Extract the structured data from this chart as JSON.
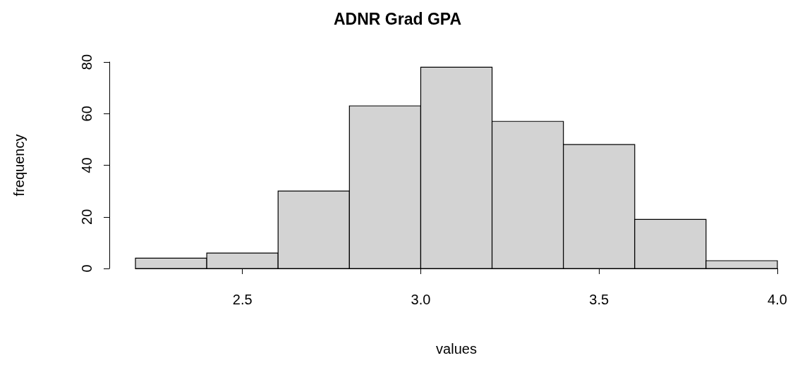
{
  "chart_data": {
    "type": "histogram",
    "title": "ADNR Grad GPA",
    "xlabel": "values",
    "ylabel": "frequency",
    "bins": [
      2.2,
      2.4,
      2.6,
      2.8,
      3.0,
      3.2,
      3.4,
      3.6,
      3.8,
      4.0
    ],
    "values": [
      4,
      6,
      30,
      63,
      78,
      57,
      48,
      19,
      3
    ],
    "color": "#d3d3d3",
    "xlim": [
      2.2,
      4.0
    ],
    "xticks": [
      2.5,
      {
        "value": 3.0,
        "label": "3.0"
      },
      3.5,
      {
        "value": 4.0,
        "label": "4.0"
      }
    ],
    "ylim": [
      0,
      80
    ],
    "yticks": [
      0,
      20,
      40,
      60,
      80
    ],
    "grid": false
  }
}
